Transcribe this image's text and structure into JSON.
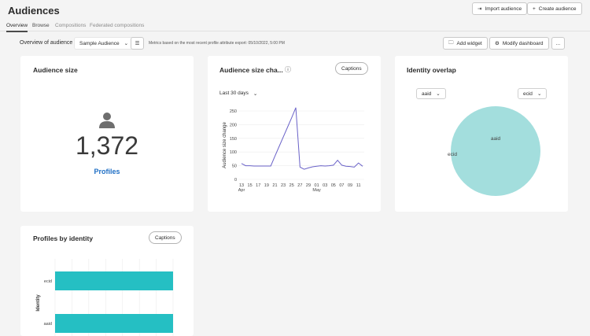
{
  "header": {
    "title": "Audiences",
    "import_label": "Import audience",
    "create_label": "Create audience"
  },
  "tabs": [
    {
      "label": "Overview"
    },
    {
      "label": "Browse"
    },
    {
      "label": "Compositions"
    },
    {
      "label": "Federated compositions"
    }
  ],
  "toolbar": {
    "overview_label": "Overview of audience",
    "audience_select": "Sample Audience",
    "metrics_text": "Metrics based on the most recent profile attribute export: 05/10/2022, 5:00 PM",
    "add_widget_label": "Add widget",
    "modify_dashboard_label": "Modify dashboard",
    "more_label": "..."
  },
  "widgets": {
    "audience_size": {
      "title": "Audience size",
      "value": "1,372",
      "label": "Profiles"
    },
    "size_change": {
      "title": "Audience size cha...",
      "captions": "Captions",
      "range": "Last 30 days"
    },
    "identity_overlap": {
      "title": "Identity overlap",
      "left_select": "aaid",
      "right_select": "ecid",
      "labels": [
        "aaid",
        "ecid"
      ],
      "color": "#a3dedd"
    },
    "profiles_by_identity": {
      "title": "Profiles by identity",
      "captions": "Captions"
    }
  },
  "chart_data": [
    {
      "type": "line",
      "ylabel": "Audience size change",
      "ylim": [
        0,
        250
      ],
      "yticks": [
        0,
        50,
        100,
        150,
        200,
        250
      ],
      "xticks": [
        "13",
        "15",
        "17",
        "19",
        "21",
        "23",
        "25",
        "27",
        "29",
        "01",
        "03",
        "05",
        "07",
        "09",
        "11"
      ],
      "month_labels": [
        "Apr",
        "May"
      ],
      "x": [
        "04-13",
        "04-14",
        "04-15",
        "04-16",
        "04-17",
        "04-18",
        "04-19",
        "04-20",
        "04-21",
        "04-22",
        "04-23",
        "04-24",
        "04-25",
        "04-26",
        "04-27",
        "04-28",
        "04-29",
        "04-30",
        "05-01",
        "05-02",
        "05-03",
        "05-04",
        "05-05",
        "05-06",
        "05-07",
        "05-08",
        "05-09",
        "05-10",
        "05-11",
        "05-12"
      ],
      "values": [
        58,
        50,
        50,
        49,
        49,
        49,
        49,
        49,
        85,
        120,
        155,
        190,
        225,
        262,
        45,
        37,
        42,
        46,
        48,
        50,
        49,
        50,
        52,
        70,
        52,
        48,
        47,
        45,
        60,
        48
      ],
      "color": "#6a62c8",
      "grid": true
    },
    {
      "type": "bar",
      "orientation": "horizontal",
      "ylabel": "Identity",
      "categories": [
        "ecid",
        "aaid"
      ],
      "values_fraction_of_axis": [
        1.0,
        1.0
      ],
      "color": "#25bfc3",
      "grid": true
    }
  ]
}
